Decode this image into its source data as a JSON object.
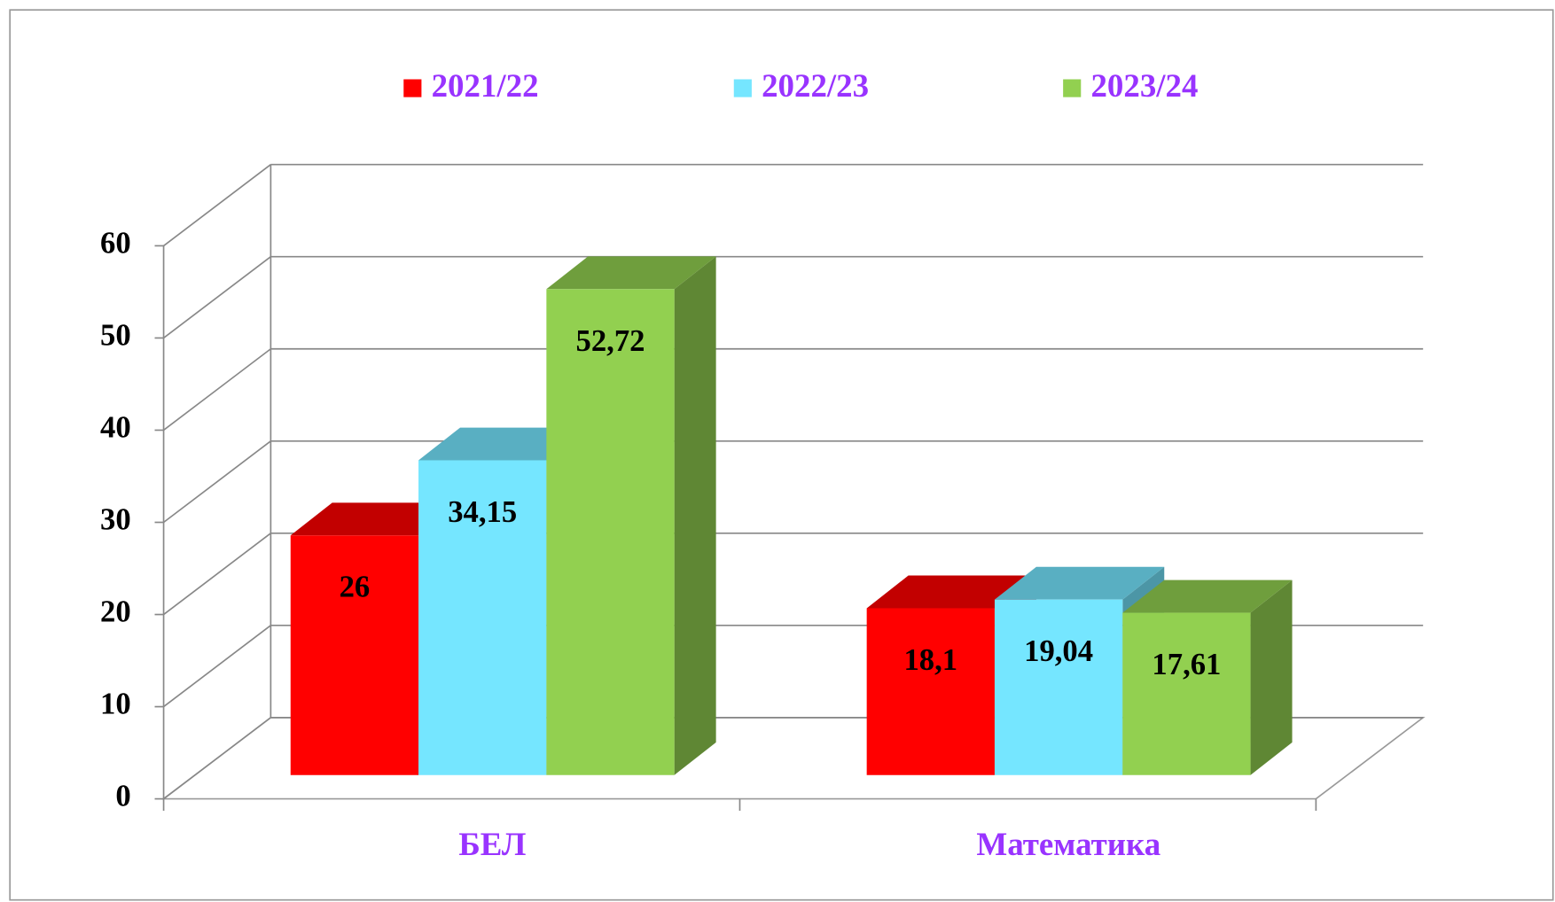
{
  "chart_data": {
    "type": "bar3d",
    "categories": [
      "БЕЛ",
      "Математика"
    ],
    "series": [
      {
        "name": "2021/22",
        "color": "#ff0000",
        "values": [
          26,
          18.1
        ],
        "value_labels": [
          "26",
          "18,1"
        ]
      },
      {
        "name": "2022/23",
        "color": "#75e6ff",
        "values": [
          34.15,
          19.04
        ],
        "value_labels": [
          "34,15",
          "19,04"
        ]
      },
      {
        "name": "2023/24",
        "color": "#92d050",
        "values": [
          52.72,
          17.61
        ],
        "value_labels": [
          "52,72",
          "17,61"
        ]
      }
    ],
    "ylim": [
      0,
      60
    ],
    "yticks": [
      0,
      10,
      20,
      30,
      40,
      50,
      60
    ],
    "grid": true,
    "legend": "top"
  }
}
